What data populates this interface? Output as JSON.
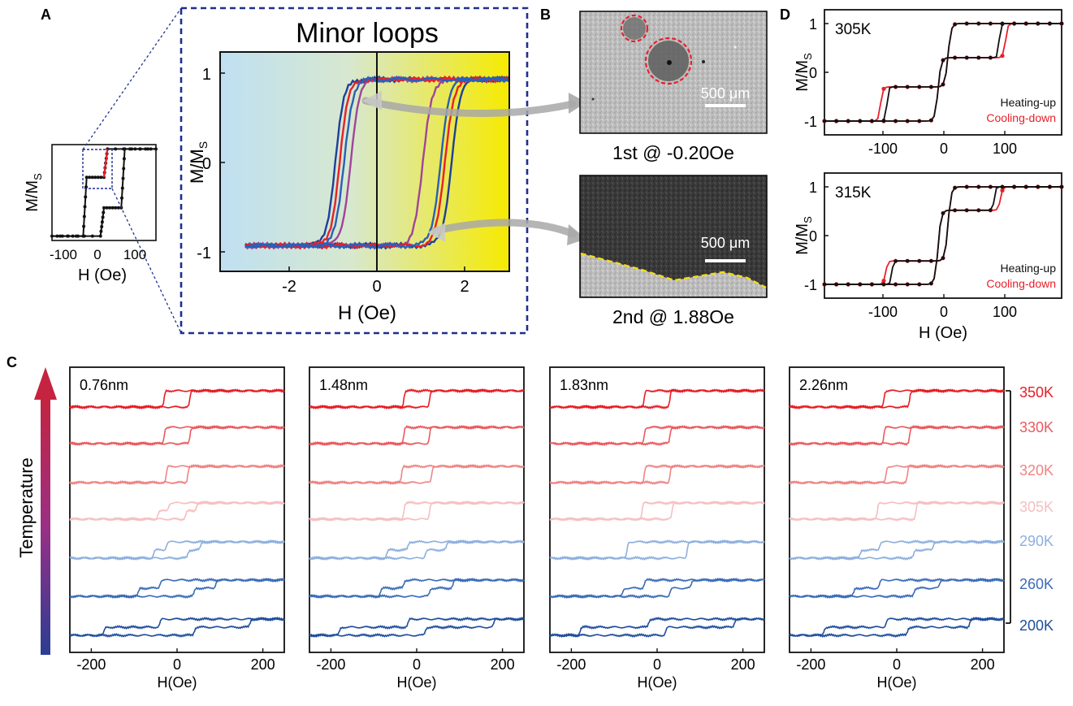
{
  "figure": {
    "panel_labels": [
      "A",
      "B",
      "C",
      "D"
    ]
  },
  "panel_a": {
    "inset": {
      "ylabel": "M/M",
      "ylabel_sub": "S",
      "xlabel": "H (Oe)",
      "xticks": [
        "-100",
        "0",
        "100"
      ]
    },
    "zoom": {
      "title": "Minor loops",
      "ylabel": "M/M",
      "ylabel_sub": "S",
      "xlabel": "H (Oe)",
      "xticks": [
        "-2",
        "0",
        "2"
      ],
      "yticks": [
        "1",
        "0",
        "-1"
      ]
    }
  },
  "panel_b": {
    "image1_caption": "1st @ -0.20Oe",
    "image2_caption": "2nd @ 1.88Oe",
    "scalebar": "500 μm"
  },
  "panel_d": {
    "ylabel": "M/M",
    "ylabel_sub": "S",
    "xlabel": "H (Oe)",
    "xticks": [
      "-100",
      "0",
      "100"
    ],
    "yticks": [
      "1",
      "0",
      "-1"
    ],
    "legend": [
      "Heating-up",
      "Cooling-down"
    ],
    "colors": {
      "heating": "#111111",
      "cooling": "#e8202a"
    },
    "plots": [
      {
        "temperature": "305K",
        "cooling_hc_outer": 100,
        "heating_hc_outer": 90,
        "plateau": 0.3
      },
      {
        "temperature": "315K",
        "cooling_hc_outer": 92,
        "heating_hc_outer": 82,
        "plateau": 0.52
      }
    ]
  },
  "panel_c": {
    "temperature_axis_label": "Temperature",
    "xlabel": "H(Oe)",
    "xticks": [
      "-200",
      "0",
      "200"
    ],
    "temperatures": [
      {
        "label": "350K",
        "color": "#e61d25"
      },
      {
        "label": "330K",
        "color": "#ea5a5e"
      },
      {
        "label": "320K",
        "color": "#ee8585"
      },
      {
        "label": "305K",
        "color": "#f5bfc0"
      },
      {
        "label": "290K",
        "color": "#8db0de"
      },
      {
        "label": "260K",
        "color": "#3b6cb8"
      },
      {
        "label": "200K",
        "color": "#1f4e9c"
      }
    ],
    "thicknesses": [
      "0.76nm",
      "1.48nm",
      "1.83nm",
      "2.26nm"
    ]
  },
  "chart_data": [
    {
      "type": "line",
      "panel": "A-inset",
      "xlabel": "H (Oe)",
      "ylabel": "M/MS",
      "xlim": [
        -150,
        150
      ],
      "ylim": [
        -1.1,
        1.1
      ],
      "series": [
        {
          "points": [
            [
              -150,
              -1
            ],
            [
              -60,
              -1
            ],
            [
              -50,
              0.35
            ],
            [
              0,
              0.35
            ],
            [
              10,
              1
            ],
            [
              150,
              1
            ]
          ]
        },
        {
          "points": [
            [
              150,
              1
            ],
            [
              60,
              1
            ],
            [
              50,
              -0.35
            ],
            [
              0,
              -0.35
            ],
            [
              -10,
              -1
            ],
            [
              -150,
              -1
            ]
          ]
        }
      ]
    },
    {
      "type": "line",
      "panel": "A-minor-loops",
      "title": "Minor loops",
      "xlabel": "H (Oe)",
      "ylabel": "M/MS",
      "xlim": [
        -3,
        3
      ],
      "ylim": [
        -1.2,
        1.2
      ],
      "series": [
        {
          "color": "#1f3f99",
          "up_switch": 1.7,
          "down_switch": -0.95
        },
        {
          "color": "#a0449a",
          "up_switch": 1.05,
          "down_switch": -0.6
        },
        {
          "color": "#e8202a",
          "up_switch": 1.55,
          "down_switch": -0.85
        },
        {
          "color": "#2a5fb8",
          "up_switch": 1.45,
          "down_switch": -0.75
        }
      ]
    },
    {
      "type": "line",
      "panel": "C",
      "xlabel": "H(Oe)",
      "xlim": [
        -250,
        250
      ],
      "plots": [
        {
          "thickness": "0.76nm",
          "loops": [
            {
              "temperature": "350K",
              "switch_fields": [
                30
              ]
            },
            {
              "temperature": "330K",
              "switch_fields": [
                30
              ]
            },
            {
              "temperature": "320K",
              "switch_fields": [
                25
              ]
            },
            {
              "temperature": "305K",
              "switch_fields": [
                20,
                45
              ]
            },
            {
              "temperature": "290K",
              "switch_fields": [
                25,
                55
              ]
            },
            {
              "temperature": "260K",
              "switch_fields": [
                40,
                90
              ]
            },
            {
              "temperature": "200K",
              "switch_fields": [
                40,
                170
              ]
            }
          ]
        },
        {
          "thickness": "1.48nm",
          "loops": [
            {
              "temperature": "350K",
              "switch_fields": [
                30
              ]
            },
            {
              "temperature": "330K",
              "switch_fields": [
                30
              ]
            },
            {
              "temperature": "320K",
              "switch_fields": [
                35
              ]
            },
            {
              "temperature": "305K",
              "switch_fields": [
                30
              ]
            },
            {
              "temperature": "290K",
              "switch_fields": [
                20,
                70
              ]
            },
            {
              "temperature": "260K",
              "switch_fields": [
                30,
                85
              ]
            },
            {
              "temperature": "200K",
              "switch_fields": [
                20,
                180
              ]
            }
          ]
        },
        {
          "thickness": "1.83nm",
          "loops": [
            {
              "temperature": "350K",
              "switch_fields": [
                30
              ]
            },
            {
              "temperature": "330K",
              "switch_fields": [
                30
              ]
            },
            {
              "temperature": "320K",
              "switch_fields": [
                30
              ]
            },
            {
              "temperature": "305K",
              "switch_fields": [
                35
              ]
            },
            {
              "temperature": "290K",
              "switch_fields": [
                70
              ]
            },
            {
              "temperature": "260K",
              "switch_fields": [
                30,
                80
              ]
            },
            {
              "temperature": "200K",
              "switch_fields": [
                20,
                180
              ]
            }
          ]
        },
        {
          "thickness": "2.26nm",
          "loops": [
            {
              "temperature": "350K",
              "switch_fields": [
                30
              ]
            },
            {
              "temperature": "330K",
              "switch_fields": [
                30
              ]
            },
            {
              "temperature": "320K",
              "switch_fields": [
                25
              ]
            },
            {
              "temperature": "305K",
              "switch_fields": [
                45
              ]
            },
            {
              "temperature": "290K",
              "switch_fields": [
                40,
                85
              ]
            },
            {
              "temperature": "260K",
              "switch_fields": [
                40,
                100
              ]
            },
            {
              "temperature": "200K",
              "switch_fields": [
                25,
                170
              ]
            }
          ]
        }
      ]
    }
  ]
}
